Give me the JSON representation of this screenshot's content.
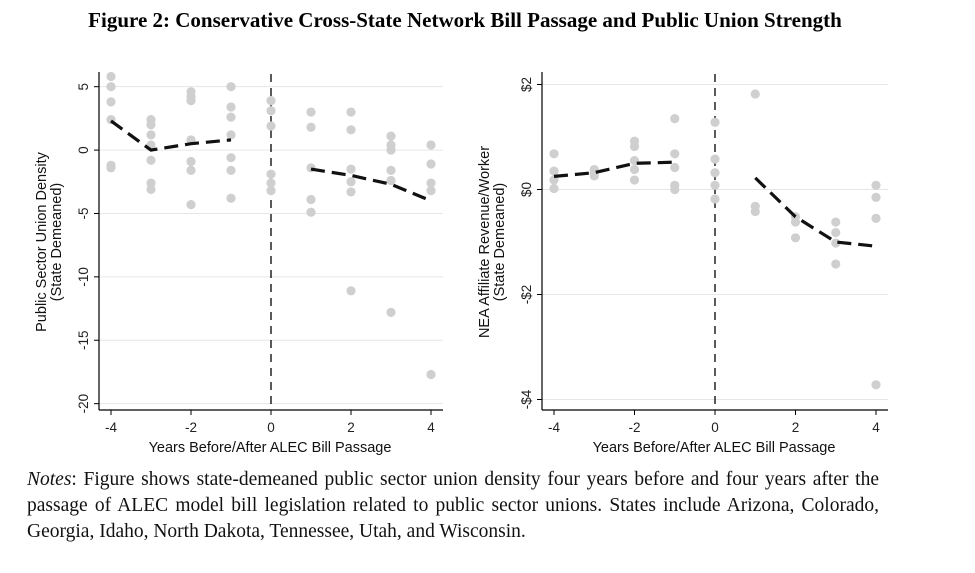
{
  "figure": {
    "title": "Figure 2: Conservative Cross-State Network Bill Passage and Public Union Strength",
    "notes_label": "Notes",
    "notes_text": ": Figure shows state-demeaned public sector union density four years before and four years after the passage of ALEC model bill legislation related to public sector unions. States include Arizona, Colorado, Georgia, Idaho, North Dakota, Tennessee, Utah, and Wisconsin."
  },
  "colors": {
    "points": "#cfcfcf",
    "line": "#111111",
    "grid": "#e6e6e6",
    "axis": "#000000"
  },
  "chart_data": [
    {
      "type": "scatter",
      "title": "",
      "xlabel": "Years Before/After ALEC Bill Passage",
      "ylabel": [
        "Public Sector Union Density",
        "(State Demeaned)"
      ],
      "xlim": [
        -4,
        4
      ],
      "ylim": [
        -20,
        6
      ],
      "xticks": [
        -4,
        -2,
        0,
        2,
        4
      ],
      "yticks": [
        5,
        0,
        -5,
        -10,
        -15,
        -20
      ],
      "yticklabels": [
        "5",
        "0",
        "-5",
        "-10",
        "-15",
        "-20"
      ],
      "xticklabels": [
        "-4",
        "-2",
        "0",
        "2",
        "4"
      ],
      "grid": true,
      "reference_line_x": 0,
      "points": [
        [
          -4,
          5.8
        ],
        [
          -4,
          5.0
        ],
        [
          -4,
          3.8
        ],
        [
          -4,
          2.4
        ],
        [
          -4,
          -1.2
        ],
        [
          -4,
          -1.4
        ],
        [
          -3,
          2.4
        ],
        [
          -3,
          2.0
        ],
        [
          -3,
          1.2
        ],
        [
          -3,
          0.4
        ],
        [
          -3,
          -0.8
        ],
        [
          -3,
          -2.6
        ],
        [
          -3,
          -3.1
        ],
        [
          -2,
          4.6
        ],
        [
          -2,
          4.2
        ],
        [
          -2,
          3.9
        ],
        [
          -2,
          0.8
        ],
        [
          -2,
          -0.9
        ],
        [
          -2,
          -1.6
        ],
        [
          -2,
          -4.3
        ],
        [
          -1,
          5.0
        ],
        [
          -1,
          3.4
        ],
        [
          -1,
          2.6
        ],
        [
          -1,
          1.2
        ],
        [
          -1,
          -0.6
        ],
        [
          -1,
          -1.6
        ],
        [
          -1,
          -3.8
        ],
        [
          0,
          3.9
        ],
        [
          0,
          3.1
        ],
        [
          0,
          1.9
        ],
        [
          0,
          -1.9
        ],
        [
          0,
          -2.6
        ],
        [
          0,
          -3.2
        ],
        [
          1,
          3.0
        ],
        [
          1,
          1.8
        ],
        [
          1,
          -1.4
        ],
        [
          1,
          -3.9
        ],
        [
          1,
          -4.9
        ],
        [
          2,
          3.0
        ],
        [
          2,
          1.6
        ],
        [
          2,
          -1.5
        ],
        [
          2,
          -2.5
        ],
        [
          2,
          -3.3
        ],
        [
          2,
          -11.1
        ],
        [
          3,
          1.1
        ],
        [
          3,
          0.4
        ],
        [
          3,
          0.0
        ],
        [
          3,
          -1.6
        ],
        [
          3,
          -2.4
        ],
        [
          3,
          -12.8
        ],
        [
          4,
          0.4
        ],
        [
          4,
          -1.1
        ],
        [
          4,
          -2.6
        ],
        [
          4,
          -3.2
        ],
        [
          4,
          -17.7
        ]
      ],
      "series": [
        {
          "name": "pre",
          "x": [
            -4,
            -3,
            -2,
            -1
          ],
          "values": [
            2.3,
            0.0,
            0.5,
            0.8
          ]
        },
        {
          "name": "post",
          "x": [
            1,
            2,
            3,
            4
          ],
          "values": [
            -1.5,
            -2.0,
            -2.7,
            -4.0
          ]
        }
      ]
    },
    {
      "type": "scatter",
      "title": "",
      "xlabel": "Years Before/After ALEC Bill Passage",
      "ylabel": [
        "NEA Affiliate Revenue/Worker",
        "(State Demeaned)"
      ],
      "xlim": [
        -4,
        4
      ],
      "ylim": [
        -4,
        2
      ],
      "xticks": [
        -4,
        -2,
        0,
        2,
        4
      ],
      "yticks": [
        2,
        0,
        -2,
        -4
      ],
      "yticklabels": [
        "$2",
        "$0",
        "-$2",
        "-$4"
      ],
      "xticklabels": [
        "-4",
        "-2",
        "0",
        "2",
        "4"
      ],
      "grid": true,
      "reference_line_x": 0,
      "points": [
        [
          -4,
          0.68
        ],
        [
          -4,
          0.35
        ],
        [
          -4,
          0.18
        ],
        [
          -4,
          0.02
        ],
        [
          -3,
          0.38
        ],
        [
          -3,
          0.32
        ],
        [
          -3,
          0.26
        ],
        [
          -2,
          0.92
        ],
        [
          -2,
          0.82
        ],
        [
          -2,
          0.55
        ],
        [
          -2,
          0.38
        ],
        [
          -2,
          0.18
        ],
        [
          -1,
          1.35
        ],
        [
          -1,
          0.68
        ],
        [
          -1,
          0.42
        ],
        [
          -1,
          0.08
        ],
        [
          -1,
          0.0
        ],
        [
          0,
          1.28
        ],
        [
          0,
          0.58
        ],
        [
          0,
          0.32
        ],
        [
          0,
          0.08
        ],
        [
          0,
          -0.18
        ],
        [
          1,
          1.82
        ],
        [
          1,
          -0.32
        ],
        [
          1,
          -0.42
        ],
        [
          2,
          -0.52
        ],
        [
          2,
          -0.62
        ],
        [
          2,
          -0.92
        ],
        [
          3,
          -0.62
        ],
        [
          3,
          -0.82
        ],
        [
          3,
          -1.02
        ],
        [
          3,
          -1.42
        ],
        [
          4,
          0.08
        ],
        [
          4,
          -0.15
        ],
        [
          4,
          -0.55
        ],
        [
          4,
          -3.72
        ]
      ],
      "series": [
        {
          "name": "pre",
          "x": [
            -4,
            -3,
            -2,
            -1
          ],
          "values": [
            0.25,
            0.32,
            0.5,
            0.52
          ]
        },
        {
          "name": "post",
          "x": [
            1,
            2,
            3,
            4
          ],
          "values": [
            0.22,
            -0.52,
            -1.0,
            -1.08
          ]
        }
      ]
    }
  ]
}
